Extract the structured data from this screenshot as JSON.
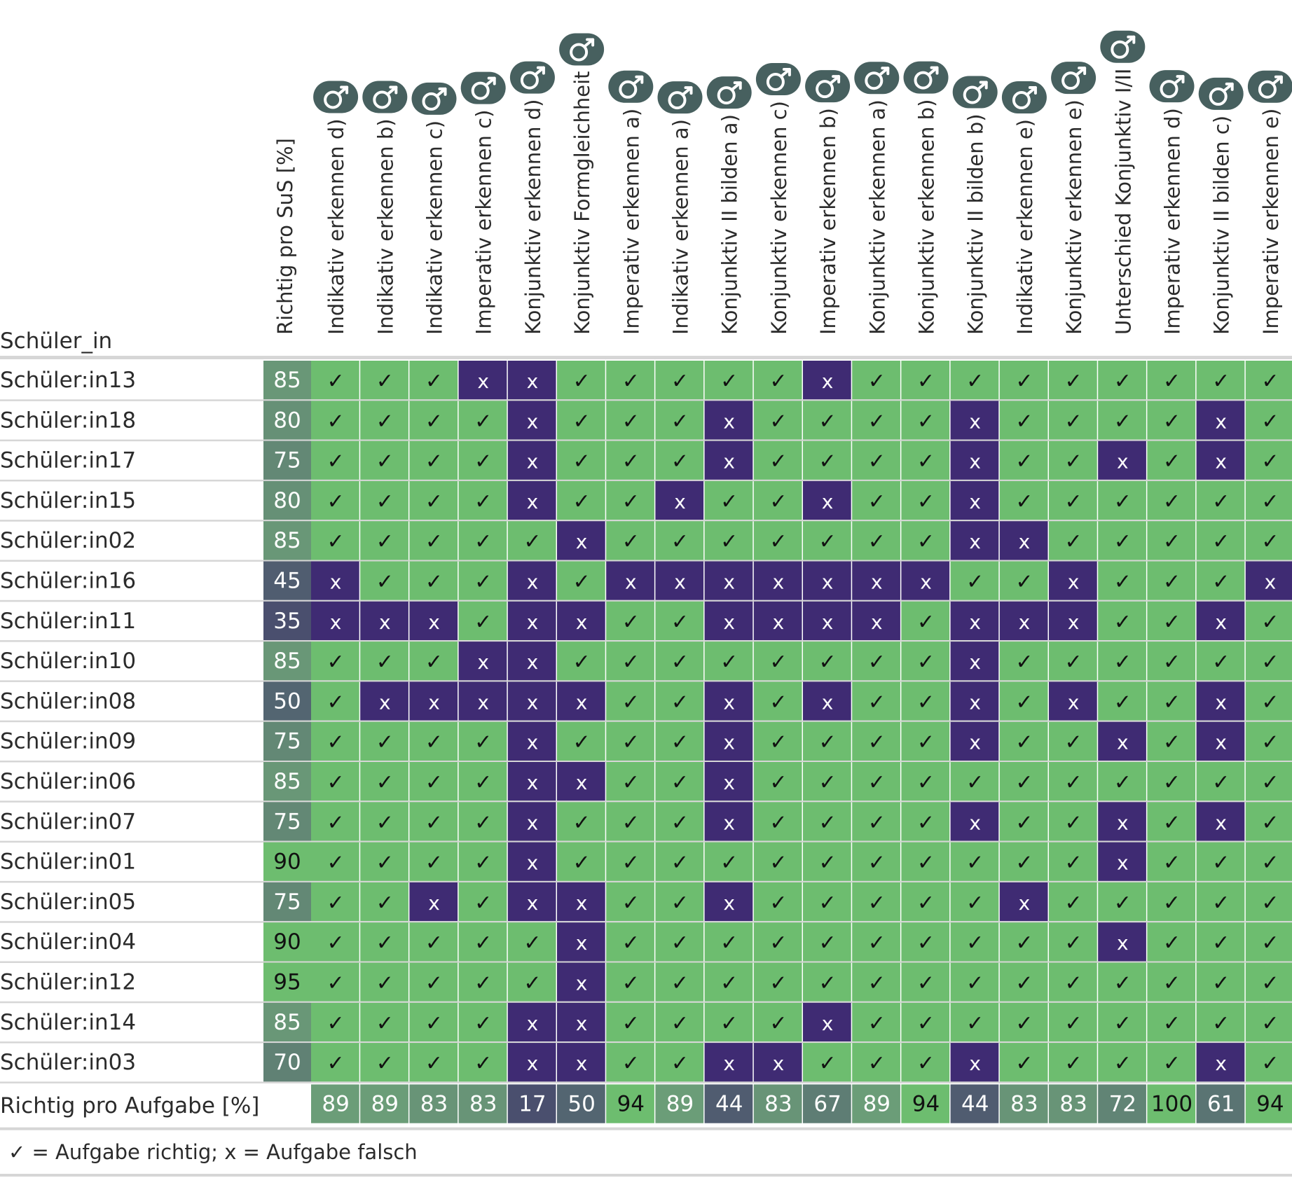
{
  "chart_data": {
    "type": "table",
    "row_header": "Schüler_in",
    "sus_header": "Richtig pro SuS [%]",
    "footer_label": "Richtig pro Aufgabe [%]",
    "legend": "✓ = Aufgabe richtig; x = Aufgabe falsch",
    "symbols": {
      "correct": "✓",
      "wrong": "x"
    },
    "icon": "gender-symbol-icon",
    "colors": {
      "correct_cell": "#6dbd6f",
      "wrong_cell": "#3f2b73",
      "header_badge": "#47605f",
      "grid_line": "#d6d6d6"
    },
    "columns": [
      "Indikativ erkennen d)",
      "Indikativ erkennen b)",
      "Indikativ erkennen c)",
      "Imperativ erkennen c)",
      "Konjunktiv erkennen d)",
      "Konjunktiv Formgleichheit",
      "Imperativ erkennen a)",
      "Indikativ erkennen a)",
      "Konjunktiv II bilden a)",
      "Konjunktiv erkennen c)",
      "Imperativ erkennen b)",
      "Konjunktiv erkennen a)",
      "Konjunktiv erkennen b)",
      "Konjunktiv II bilden b)",
      "Indikativ erkennen e)",
      "Konjunktiv erkennen e)",
      "Unterschied Konjunktiv I/II",
      "Imperativ erkennen d)",
      "Konjunktiv II bilden c)",
      "Imperativ erkennen e)"
    ],
    "rows": [
      {
        "name": "Schüler:in13",
        "pct": 85,
        "results": "✓✓✓xx✓✓✓✓✓x✓✓✓✓✓✓✓✓✓"
      },
      {
        "name": "Schüler:in18",
        "pct": 80,
        "results": "✓✓✓✓x✓✓✓x✓✓✓✓x✓✓✓✓x✓"
      },
      {
        "name": "Schüler:in17",
        "pct": 75,
        "results": "✓✓✓✓x✓✓✓x✓✓✓✓x✓✓x✓x✓"
      },
      {
        "name": "Schüler:in15",
        "pct": 80,
        "results": "✓✓✓✓x✓✓x✓✓x✓✓x✓✓✓✓✓✓"
      },
      {
        "name": "Schüler:in02",
        "pct": 85,
        "results": "✓✓✓✓✓x✓✓✓✓✓✓✓xx✓✓✓✓✓"
      },
      {
        "name": "Schüler:in16",
        "pct": 45,
        "results": "x✓✓✓x✓xxxxxxx✓✓x✓✓✓x"
      },
      {
        "name": "Schüler:in11",
        "pct": 35,
        "results": "xxx✓xx✓✓xxxx✓xxx✓✓x✓"
      },
      {
        "name": "Schüler:in10",
        "pct": 85,
        "results": "✓✓✓xx✓✓✓✓✓✓✓✓x✓✓✓✓✓✓"
      },
      {
        "name": "Schüler:in08",
        "pct": 50,
        "results": "✓xxxxx✓✓x✓x✓✓x✓x✓✓x✓"
      },
      {
        "name": "Schüler:in09",
        "pct": 75,
        "results": "✓✓✓✓x✓✓✓x✓✓✓✓x✓✓x✓x✓"
      },
      {
        "name": "Schüler:in06",
        "pct": 85,
        "results": "✓✓✓✓xx✓✓x✓✓✓✓✓✓✓✓✓✓✓"
      },
      {
        "name": "Schüler:in07",
        "pct": 75,
        "results": "✓✓✓✓x✓✓✓x✓✓✓✓x✓✓x✓x✓"
      },
      {
        "name": "Schüler:in01",
        "pct": 90,
        "results": "✓✓✓✓x✓✓✓✓✓✓✓✓✓✓✓x✓✓✓"
      },
      {
        "name": "Schüler:in05",
        "pct": 75,
        "results": "✓✓x✓xx✓✓x✓✓✓✓✓x✓✓✓✓✓"
      },
      {
        "name": "Schüler:in04",
        "pct": 90,
        "results": "✓✓✓✓✓x✓✓✓✓✓✓✓✓✓✓x✓✓✓"
      },
      {
        "name": "Schüler:in12",
        "pct": 95,
        "results": "✓✓✓✓✓x✓✓✓✓✓✓✓✓✓✓✓✓✓✓"
      },
      {
        "name": "Schüler:in14",
        "pct": 85,
        "results": "✓✓✓✓xx✓✓✓✓x✓✓✓✓✓✓✓✓✓"
      },
      {
        "name": "Schüler:in03",
        "pct": 70,
        "results": "✓✓✓✓xx✓✓xx✓✓✓x✓✓✓✓x✓"
      }
    ],
    "per_task_pct": [
      89,
      89,
      83,
      83,
      17,
      50,
      94,
      89,
      44,
      83,
      67,
      89,
      94,
      44,
      83,
      83,
      72,
      100,
      61,
      94
    ]
  }
}
